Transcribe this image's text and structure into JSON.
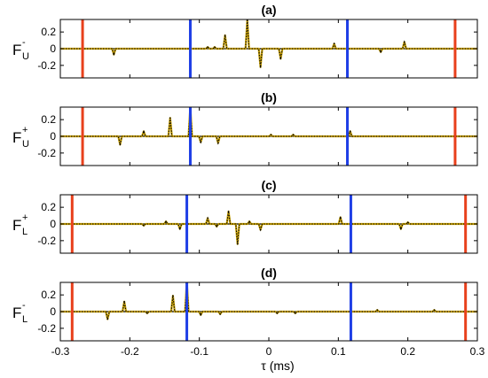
{
  "chart_data": {
    "type": "line",
    "xlabel": "τ (ms)",
    "xlim": [
      -0.3,
      0.3
    ],
    "xticks": [
      -0.3,
      -0.2,
      -0.1,
      0,
      0.1,
      0.2,
      0.3
    ],
    "xtick_labels": [
      "-0.3",
      "-0.2",
      "-0.1",
      "0",
      "0.1",
      "0.2",
      "0.3"
    ],
    "ylim": [
      -0.35,
      0.35
    ],
    "yticks": [
      0.2,
      0,
      -0.2
    ],
    "ytick_labels": [
      "0.2",
      "0",
      "-0.2"
    ],
    "grid": false,
    "colors": {
      "trace": "#c8a000",
      "overlay": "#000000",
      "red_marker": "#e8401c",
      "blue_marker": "#1f3fe6",
      "zero_line": "#000000"
    },
    "panels": [
      {
        "title": "(a)",
        "ylabel": {
          "main": "F",
          "sup": "-",
          "sub": "U"
        },
        "red_lines_x": [
          -0.268,
          0.268
        ],
        "blue_lines_x": [
          -0.113,
          0.113
        ],
        "spikes": [
          {
            "x": -0.223,
            "y": -0.07
          },
          {
            "x": -0.088,
            "y": 0.02
          },
          {
            "x": -0.078,
            "y": 0.02
          },
          {
            "x": -0.063,
            "y": 0.16
          },
          {
            "x": -0.031,
            "y": 0.34
          },
          {
            "x": -0.012,
            "y": -0.22
          },
          {
            "x": 0.017,
            "y": -0.12
          },
          {
            "x": 0.094,
            "y": 0.06
          },
          {
            "x": 0.161,
            "y": -0.04
          },
          {
            "x": 0.195,
            "y": 0.08
          }
        ]
      },
      {
        "title": "(b)",
        "ylabel": {
          "main": "F",
          "sup": "+",
          "sub": "U"
        },
        "red_lines_x": [
          -0.268,
          0.268
        ],
        "blue_lines_x": [
          -0.113,
          0.113
        ],
        "spikes": [
          {
            "x": -0.214,
            "y": -0.1
          },
          {
            "x": -0.18,
            "y": 0.06
          },
          {
            "x": -0.142,
            "y": 0.22
          },
          {
            "x": -0.113,
            "y": 0.36
          },
          {
            "x": -0.098,
            "y": -0.07
          },
          {
            "x": -0.073,
            "y": -0.08
          },
          {
            "x": 0.003,
            "y": 0.02
          },
          {
            "x": 0.035,
            "y": 0.02
          },
          {
            "x": 0.117,
            "y": 0.06
          }
        ]
      },
      {
        "title": "(c)",
        "ylabel": {
          "main": "F",
          "sup": "+",
          "sub": "L"
        },
        "red_lines_x": [
          -0.283,
          0.283
        ],
        "blue_lines_x": [
          -0.118,
          0.118
        ],
        "spikes": [
          {
            "x": -0.18,
            "y": -0.02
          },
          {
            "x": -0.148,
            "y": 0.03
          },
          {
            "x": -0.128,
            "y": -0.06
          },
          {
            "x": -0.088,
            "y": 0.07
          },
          {
            "x": -0.075,
            "y": -0.03
          },
          {
            "x": -0.058,
            "y": 0.15
          },
          {
            "x": -0.045,
            "y": -0.24
          },
          {
            "x": -0.028,
            "y": 0.03
          },
          {
            "x": -0.012,
            "y": -0.07
          },
          {
            "x": 0.103,
            "y": 0.08
          },
          {
            "x": 0.19,
            "y": -0.06
          },
          {
            "x": 0.2,
            "y": 0.02
          }
        ]
      },
      {
        "title": "(d)",
        "ylabel": {
          "main": "F",
          "sup": "-",
          "sub": "L"
        },
        "red_lines_x": [
          -0.283,
          0.283
        ],
        "blue_lines_x": [
          -0.118,
          0.118
        ],
        "spikes": [
          {
            "x": -0.232,
            "y": -0.09
          },
          {
            "x": -0.208,
            "y": 0.12
          },
          {
            "x": -0.175,
            "y": -0.02
          },
          {
            "x": -0.138,
            "y": 0.19
          },
          {
            "x": -0.118,
            "y": 0.36
          },
          {
            "x": -0.098,
            "y": -0.04
          },
          {
            "x": -0.07,
            "y": -0.03
          },
          {
            "x": 0.012,
            "y": -0.02
          },
          {
            "x": 0.038,
            "y": -0.02
          },
          {
            "x": 0.156,
            "y": 0.02
          },
          {
            "x": 0.238,
            "y": 0.02
          }
        ]
      }
    ]
  }
}
